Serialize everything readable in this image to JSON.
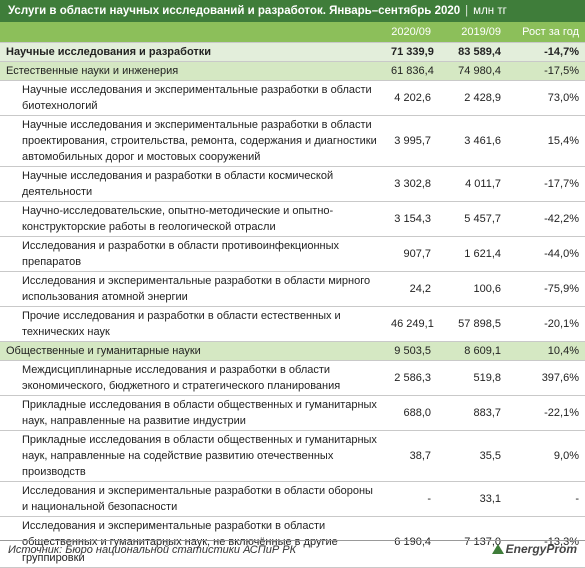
{
  "header": {
    "title": "Услуги в области научных исследований и разработок. Январь–сентябрь 2020",
    "unit": "млн тг"
  },
  "table": {
    "columns": [
      "2020/09",
      "2019/09",
      "Рост за год"
    ],
    "total": {
      "label": "Научные исследования и разработки",
      "values": [
        "71 339,9",
        "83 589,4",
        "-14,7%"
      ]
    },
    "sections": [
      {
        "label": "Естественные науки и инженерия",
        "values": [
          "61 836,4",
          "74 980,4",
          "-17,5%"
        ],
        "items": [
          {
            "label": "Научные исследования и экспериментальные разработки в области биотехнологий",
            "values": [
              "4 202,6",
              "2 428,9",
              "73,0%"
            ]
          },
          {
            "label": "Научные исследования и экспериментальные разработки в области проектирования, строительства, ремонта, содержания и диагностики автомобильных дорог и мостовых сооружений",
            "values": [
              "3 995,7",
              "3 461,6",
              "15,4%"
            ]
          },
          {
            "label": "Научные исследования и разработки в области космической деятельности",
            "values": [
              "3 302,8",
              "4 011,7",
              "-17,7%"
            ]
          },
          {
            "label": "Научно-исследовательские, опытно-методические и опытно-конструкторские работы в геологической отрасли",
            "values": [
              "3 154,3",
              "5 457,7",
              "-42,2%"
            ]
          },
          {
            "label": "Исследования и разработки в области противоинфекционных препаратов",
            "values": [
              "907,7",
              "1 621,4",
              "-44,0%"
            ]
          },
          {
            "label": "Исследования и экспериментальные разработки в области мирного использования атомной энергии",
            "values": [
              "24,2",
              "100,6",
              "-75,9%"
            ]
          },
          {
            "label": "Прочие исследования и разработки в области естественных и технических наук",
            "values": [
              "46 249,1",
              "57 898,5",
              "-20,1%"
            ]
          }
        ]
      },
      {
        "label": "Общественные и гуманитарные науки",
        "values": [
          "9 503,5",
          "8 609,1",
          "10,4%"
        ],
        "items": [
          {
            "label": "Междисциплинарные исследования и разработки в области экономического, бюджетного и стратегического планирования",
            "values": [
              "2 586,3",
              "519,8",
              "397,6%"
            ]
          },
          {
            "label": "Прикладные исследования в области общественных и гуманитарных наук, направленные на развитие индустрии",
            "values": [
              "688,0",
              "883,7",
              "-22,1%"
            ]
          },
          {
            "label": "Прикладные исследования в области общественных и гуманитарных наук, направленные на содействие развитию отечественных производств",
            "values": [
              "38,7",
              "35,5",
              "9,0%"
            ]
          },
          {
            "label": "Исследования и экспериментальные разработки в области обороны и национальной безопасности",
            "values": [
              "-",
              "33,1",
              "-"
            ]
          },
          {
            "label": "Исследования и экспериментальные разработки в области общественных и гуманитарных наук, не включённые в другие группировки",
            "values": [
              "6 190,4",
              "7 137,0",
              "-13,3%"
            ]
          }
        ]
      }
    ]
  },
  "footer": {
    "source": "Источник: Бюро национальной статистики АСПиР РК",
    "logo": "EnergyProm"
  }
}
